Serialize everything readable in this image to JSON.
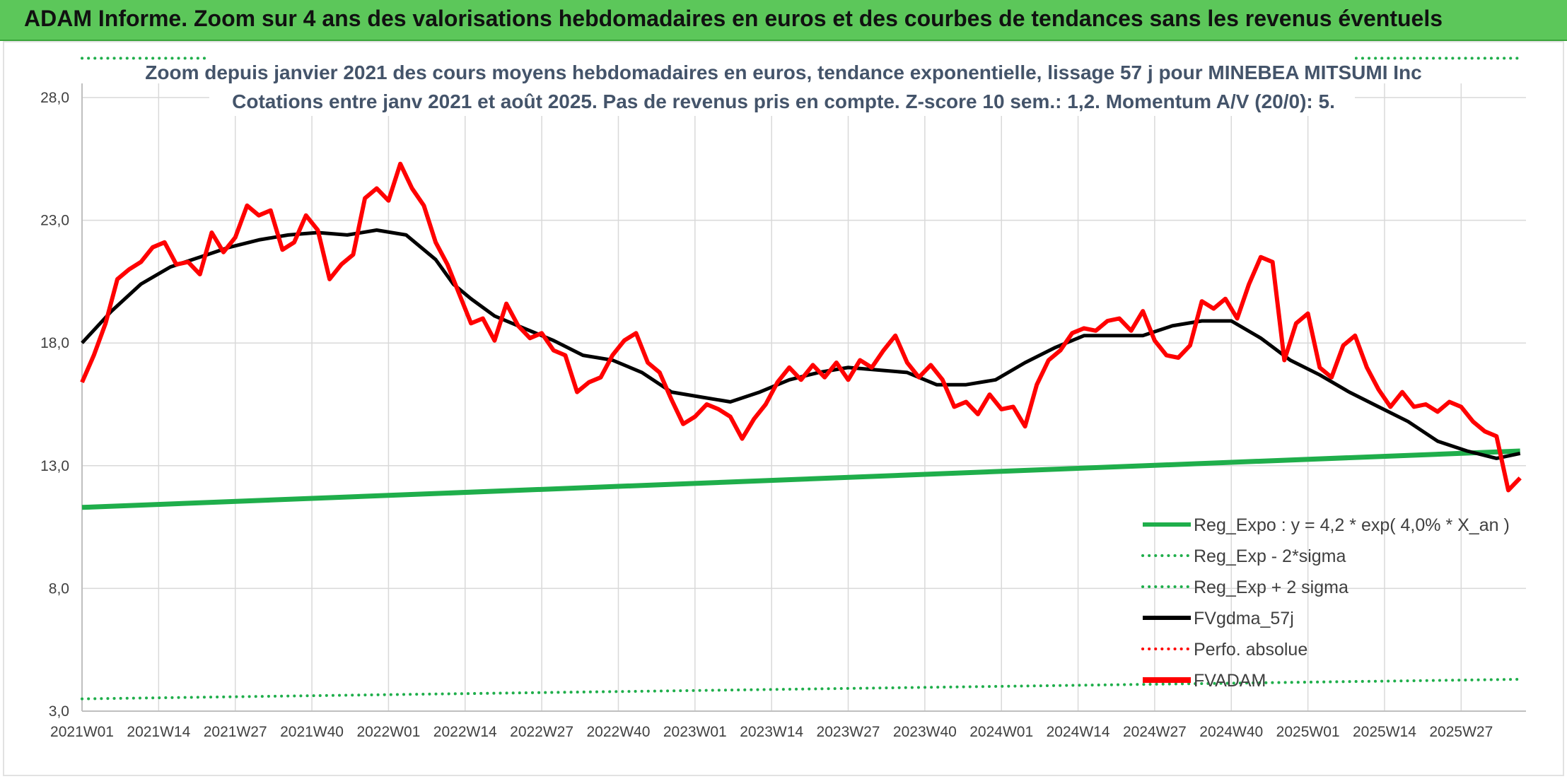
{
  "banner": {
    "title": "ADAM Informe. Zoom sur 4 ans des valorisations hebdomadaires en euros et des courbes de tendances sans les revenus éventuels"
  },
  "chart_data": {
    "type": "line",
    "title": "Zoom depuis janvier 2021 des cours moyens hebdomadaires en euros, tendance exponentielle, lissage 57 j pour MINEBEA MITSUMI Inc",
    "subtitle": "Cotations entre janv 2021 et août 2025. Pas de revenus pris en compte. Z-score 10 sem.: 1,2. Momentum A/V (20/0): 5.",
    "ylim": [
      3,
      28
    ],
    "y_ticks": [
      "3,0",
      "8,0",
      "13,0",
      "18,0",
      "23,0",
      "28,0"
    ],
    "x_ticks": [
      "2021W01",
      "2021W14",
      "2021W27",
      "2021W40",
      "2022W01",
      "2022W14",
      "2022W27",
      "2022W40",
      "2023W01",
      "2023W14",
      "2023W27",
      "2023W40",
      "2024W01",
      "2024W14",
      "2024W27",
      "2024W40",
      "2025W01",
      "2025W14",
      "2025W27"
    ],
    "grid": true,
    "legend_position": "bottom-right",
    "weeks_total": 244,
    "series": [
      {
        "name": "Reg_Expo : y = 4,2 * exp( 4,0% *  X_an )",
        "style": "solid",
        "color": "#1fae4b",
        "x": [
          0,
          244
        ],
        "y": [
          11.3,
          13.6
        ]
      },
      {
        "name": "Reg_Exp - 2*sigma",
        "style": "dotted",
        "color": "#1fae4b",
        "x": [
          0,
          244
        ],
        "y": [
          3.5,
          4.3
        ]
      },
      {
        "name": "Reg_Exp + 2 sigma",
        "style": "dotted",
        "color": "#1fae4b",
        "x": [
          0,
          244
        ],
        "y": [
          29.6,
          29.6
        ]
      },
      {
        "name": "FVgdma_57j",
        "style": "solid",
        "color": "#000000",
        "x": [
          0,
          5,
          10,
          15,
          20,
          25,
          30,
          35,
          40,
          45,
          50,
          55,
          60,
          63,
          66,
          70,
          75,
          80,
          85,
          90,
          95,
          100,
          105,
          110,
          115,
          120,
          125,
          130,
          135,
          140,
          145,
          150,
          155,
          160,
          165,
          170,
          175,
          180,
          185,
          190,
          195,
          200,
          205,
          210,
          215,
          220,
          225,
          230,
          235,
          240,
          244
        ],
        "y": [
          18.0,
          19.3,
          20.4,
          21.1,
          21.5,
          21.9,
          22.2,
          22.4,
          22.5,
          22.4,
          22.6,
          22.4,
          21.4,
          20.4,
          19.8,
          19.1,
          18.6,
          18.1,
          17.5,
          17.3,
          16.8,
          16.0,
          15.8,
          15.6,
          16.0,
          16.5,
          16.8,
          17.0,
          16.9,
          16.8,
          16.3,
          16.3,
          16.5,
          17.2,
          17.8,
          18.3,
          18.3,
          18.3,
          18.7,
          18.9,
          18.9,
          18.2,
          17.3,
          16.7,
          16.0,
          15.4,
          14.8,
          14.0,
          13.6,
          13.3,
          13.5
        ]
      },
      {
        "name": "Perfo. absolue",
        "style": "dotted",
        "color": "#ff0000",
        "x": [],
        "y": []
      },
      {
        "name": "FVADAM",
        "style": "solid",
        "color": "#ff0000",
        "x": [
          0,
          2,
          4,
          6,
          8,
          10,
          12,
          14,
          16,
          18,
          20,
          22,
          24,
          26,
          28,
          30,
          32,
          34,
          36,
          38,
          40,
          42,
          44,
          46,
          48,
          50,
          52,
          54,
          56,
          58,
          60,
          62,
          64,
          66,
          68,
          70,
          72,
          74,
          76,
          78,
          80,
          82,
          84,
          86,
          88,
          90,
          92,
          94,
          96,
          98,
          100,
          102,
          104,
          106,
          108,
          110,
          112,
          114,
          116,
          118,
          120,
          122,
          124,
          126,
          128,
          130,
          132,
          134,
          136,
          138,
          140,
          142,
          144,
          146,
          148,
          150,
          152,
          154,
          156,
          158,
          160,
          162,
          164,
          166,
          168,
          170,
          172,
          174,
          176,
          178,
          180,
          182,
          184,
          186,
          188,
          190,
          192,
          194,
          196,
          198,
          200,
          202,
          204,
          206,
          208,
          210,
          212,
          214,
          216,
          218,
          220,
          222,
          224,
          226,
          228,
          230,
          232,
          234,
          236,
          238,
          240,
          242,
          244
        ],
        "y": [
          16.4,
          17.5,
          18.8,
          20.6,
          21.0,
          21.3,
          21.9,
          22.1,
          21.2,
          21.3,
          20.8,
          22.5,
          21.7,
          22.3,
          23.6,
          23.2,
          23.4,
          21.8,
          22.1,
          23.2,
          22.6,
          20.6,
          21.2,
          21.6,
          23.9,
          24.3,
          23.8,
          25.3,
          24.3,
          23.6,
          22.1,
          21.2,
          20.0,
          18.8,
          19.0,
          18.1,
          19.6,
          18.7,
          18.2,
          18.4,
          17.7,
          17.5,
          16.0,
          16.4,
          16.6,
          17.5,
          18.1,
          18.4,
          17.2,
          16.8,
          15.7,
          14.7,
          15.0,
          15.5,
          15.3,
          15.0,
          14.1,
          14.9,
          15.5,
          16.4,
          17.0,
          16.5,
          17.1,
          16.6,
          17.2,
          16.5,
          17.3,
          17.0,
          17.7,
          18.3,
          17.2,
          16.6,
          17.1,
          16.5,
          15.4,
          15.6,
          15.1,
          15.9,
          15.3,
          15.4,
          14.6,
          16.3,
          17.3,
          17.7,
          18.4,
          18.6,
          18.5,
          18.9,
          19.0,
          18.5,
          19.3,
          18.1,
          17.5,
          17.4,
          17.9,
          19.7,
          19.4,
          19.8,
          19.0,
          20.4,
          21.5,
          21.3,
          17.3,
          18.8,
          19.2,
          17.0,
          16.6,
          17.9,
          18.3,
          17.0,
          16.1,
          15.4,
          16.0,
          15.4,
          15.5,
          15.2,
          15.6,
          15.4,
          14.8,
          14.4,
          14.2,
          12.0,
          12.5
        ]
      }
    ]
  }
}
